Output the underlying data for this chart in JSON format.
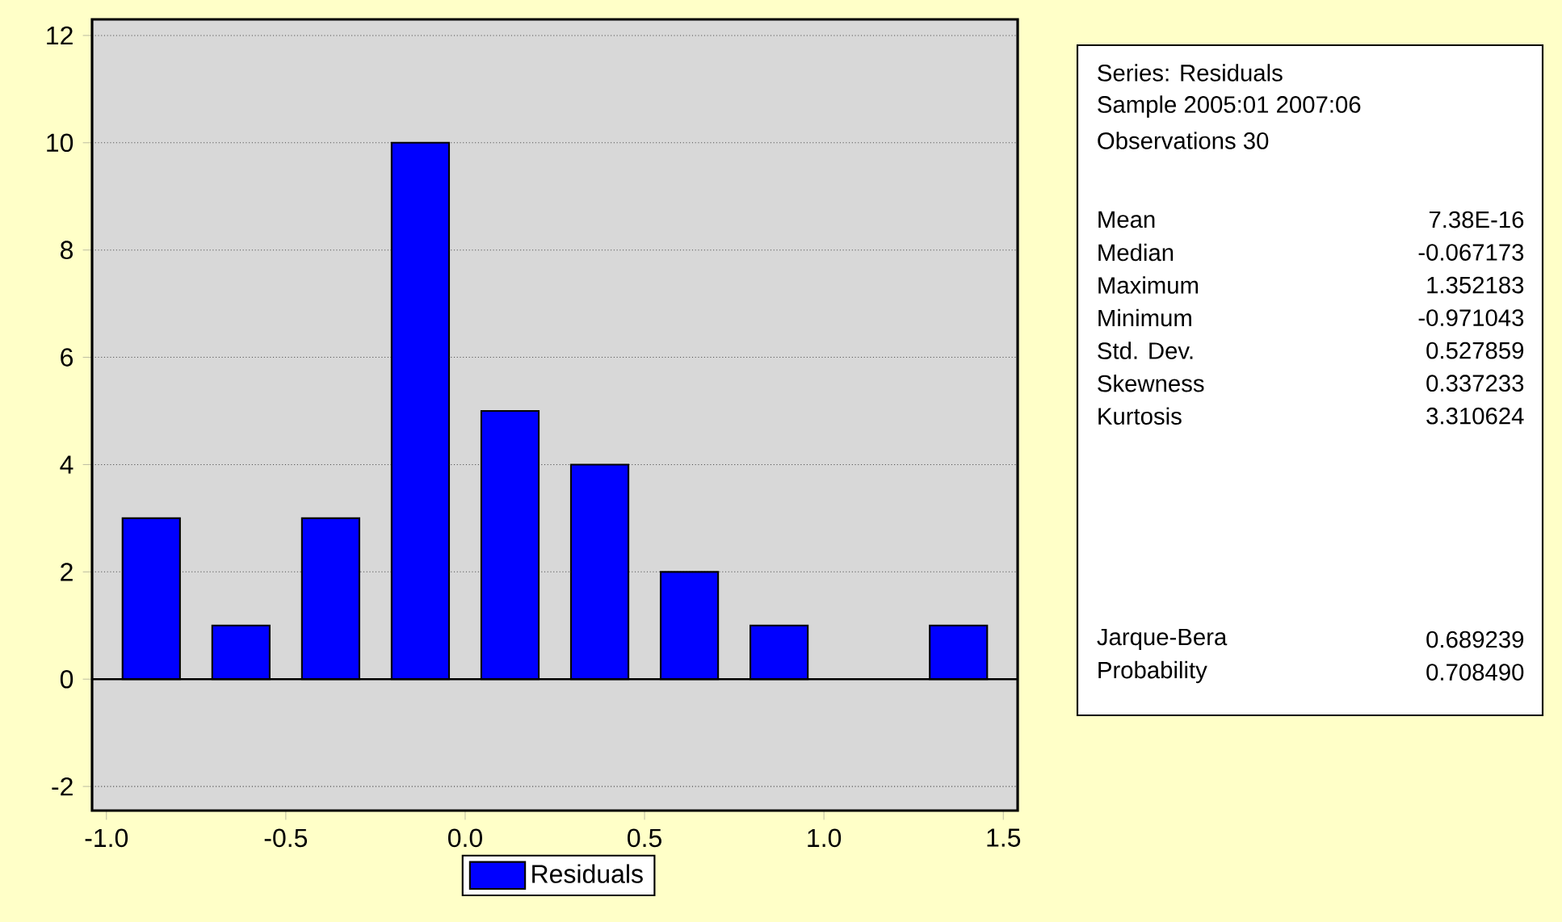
{
  "chart_data": {
    "type": "histogram",
    "bins": [
      -1.0,
      -0.75,
      -0.5,
      -0.25,
      0.0,
      0.25,
      0.5,
      0.75,
      1.0,
      1.25,
      1.5
    ],
    "series": [
      {
        "name": "Residuals",
        "color": "#0000ff",
        "values": [
          3,
          1,
          3,
          10,
          5,
          4,
          2,
          1,
          0,
          1
        ]
      }
    ],
    "xlim": [
      -1.04,
      1.54
    ],
    "ylim": [
      -2.45,
      12.3
    ],
    "xticks": [
      {
        "value": -1.0,
        "label": "-1.0"
      },
      {
        "value": -0.5,
        "label": "-0.5"
      },
      {
        "value": 0.0,
        "label": "0.0"
      },
      {
        "value": 0.5,
        "label": "0.5"
      },
      {
        "value": 1.0,
        "label": "1.0"
      },
      {
        "value": 1.5,
        "label": "1.5"
      }
    ],
    "yticks": [
      -2,
      0,
      2,
      4,
      6,
      8,
      10,
      12
    ],
    "grid": "y",
    "legend": "bottom",
    "ref_lines": [
      {
        "axis": "y",
        "value": 0,
        "label": null,
        "color": "#000000"
      }
    ],
    "annotations": [
      "Series: Residuals",
      "Sample 2005:01 2007:06",
      "Observations 30",
      "Mean",
      "7.38E-16",
      "Median",
      "-0.067173",
      "Maximum",
      "1.352183",
      "Minimum",
      "-0.971043",
      "Std. Dev.",
      "0.527859",
      "Skewness",
      "0.337233",
      "Kurtosis",
      "3.310624",
      "Jarque-Bera",
      "0.689239",
      "Probability",
      "0.708490"
    ]
  }
}
